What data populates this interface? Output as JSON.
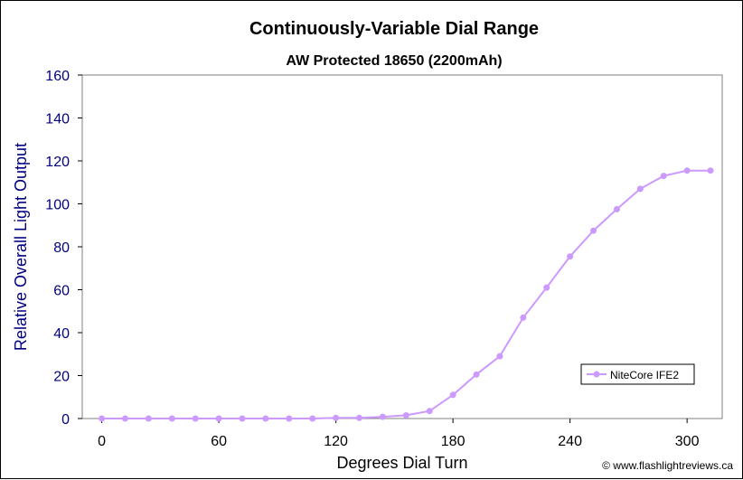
{
  "chart_data": {
    "type": "line",
    "title": "Continuously-Variable Dial Range",
    "subtitle": "AW Protected 18650 (2200mAh)",
    "xlabel": "Degrees Dial Turn",
    "ylabel": "Relative Overall Light Output",
    "xlim": [
      -10,
      318
    ],
    "ylim": [
      0,
      160
    ],
    "x_ticks": [
      0,
      60,
      120,
      180,
      240,
      300
    ],
    "y_ticks": [
      0,
      20,
      40,
      60,
      80,
      100,
      120,
      140,
      160
    ],
    "grid": false,
    "legend_position": "bottom-right",
    "series": [
      {
        "name": "NiteCore IFE2",
        "color": "#CC99FF",
        "x": [
          0,
          12,
          24,
          36,
          48,
          60,
          72,
          84,
          96,
          108,
          120,
          132,
          144,
          156,
          168,
          180,
          192,
          204,
          216,
          228,
          240,
          252,
          264,
          276,
          288,
          300,
          312
        ],
        "y": [
          0,
          0,
          0,
          0,
          0,
          0,
          0,
          0,
          0,
          0,
          0.3,
          0.3,
          0.8,
          1.5,
          3.5,
          11,
          20.5,
          29,
          47,
          61,
          75.5,
          87.5,
          97.5,
          107,
          113,
          115.5,
          115.5
        ]
      }
    ]
  },
  "credit": "© www.flashlightreviews.ca"
}
